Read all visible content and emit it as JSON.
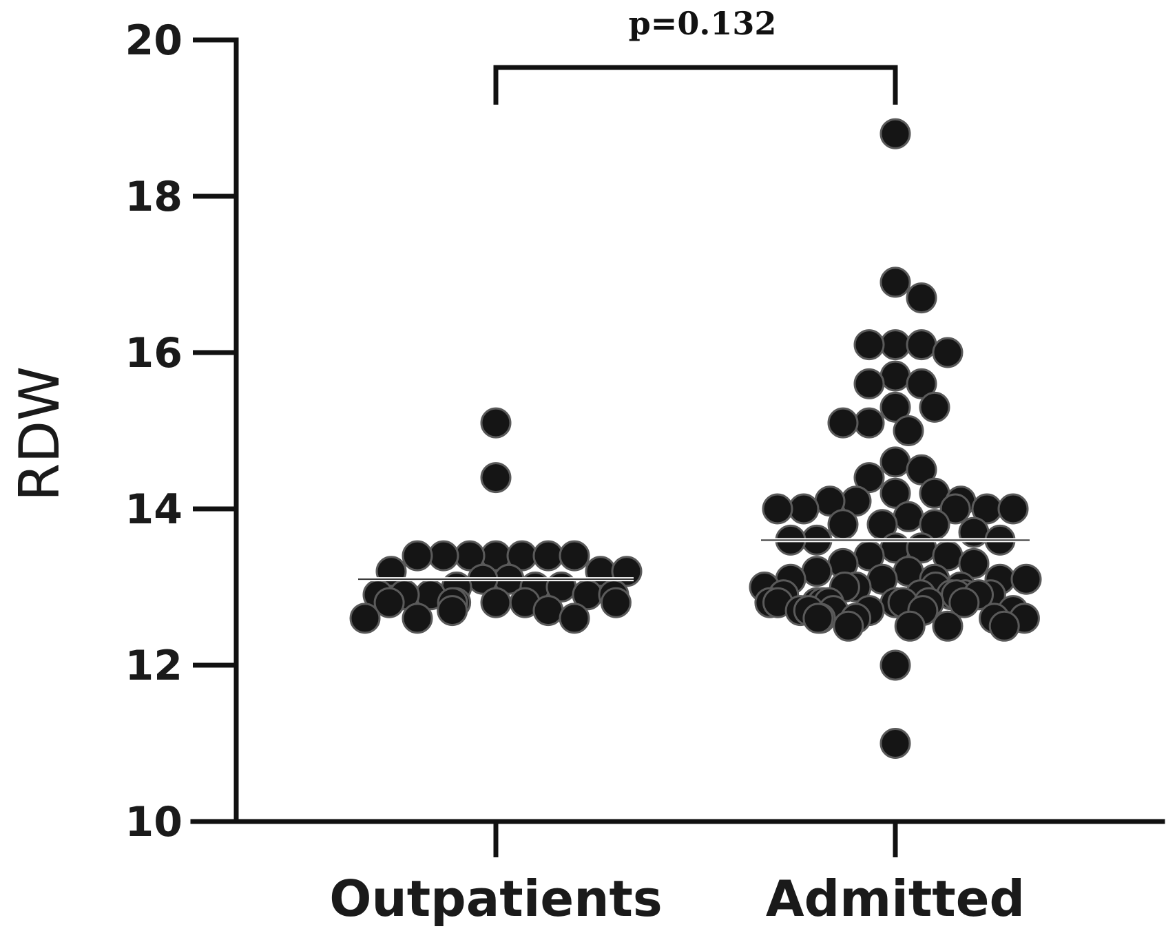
{
  "chart_data": {
    "type": "scatter",
    "title": "",
    "xlabel": "",
    "ylabel": "RDW",
    "ylim": [
      10,
      20
    ],
    "yticks": [
      10,
      12,
      14,
      16,
      18,
      20
    ],
    "grid": false,
    "categories": [
      "Outpatients",
      "Admitted"
    ],
    "annotation": {
      "text": "p=0.132",
      "between": [
        "Outpatients",
        "Admitted"
      ]
    },
    "series": [
      {
        "category": "Outpatients",
        "mean": 13.1,
        "values": [
          15.1,
          14.4,
          13.4,
          13.4,
          13.4,
          13.4,
          13.4,
          13.4,
          13.4,
          13.1,
          13.1,
          13.2,
          13.2,
          13.2,
          13.0,
          13.0,
          13.0,
          12.9,
          12.9,
          12.9,
          12.9,
          12.9,
          12.8,
          12.8,
          12.8,
          12.8,
          12.8,
          12.8,
          12.7,
          12.7,
          12.6,
          12.6,
          12.6
        ]
      },
      {
        "category": "Admitted",
        "mean": 13.6,
        "values": [
          18.8,
          16.9,
          16.7,
          16.1,
          16.1,
          16.1,
          16.0,
          15.7,
          15.6,
          15.6,
          15.3,
          15.3,
          15.1,
          15.1,
          15.0,
          14.6,
          14.5,
          14.4,
          14.2,
          14.2,
          14.1,
          14.1,
          14.1,
          14.0,
          14.0,
          14.0,
          14.0,
          14.0,
          13.9,
          13.8,
          13.8,
          13.8,
          13.7,
          13.6,
          13.6,
          13.6,
          13.5,
          13.5,
          13.4,
          13.4,
          13.3,
          13.3,
          13.2,
          13.2,
          13.1,
          13.1,
          13.1,
          13.1,
          13.1,
          13.0,
          13.0,
          13.0,
          13.0,
          13.0,
          12.9,
          12.9,
          12.9,
          12.9,
          12.9,
          12.9,
          12.9,
          12.8,
          12.8,
          12.8,
          12.8,
          12.8,
          12.8,
          12.8,
          12.8,
          12.8,
          12.7,
          12.7,
          12.7,
          12.7,
          12.7,
          12.7,
          12.6,
          12.6,
          12.6,
          12.6,
          12.6,
          12.5,
          12.5,
          12.5,
          12.5,
          12.0,
          11.0
        ]
      }
    ]
  }
}
